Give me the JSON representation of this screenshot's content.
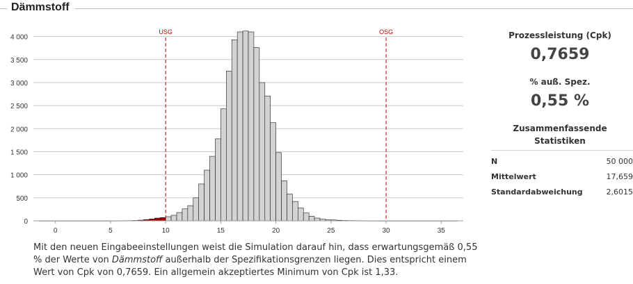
{
  "title": "Dämmstoff",
  "stats": {
    "cpk_label": "Prozessleistung (Cpk)",
    "cpk_value": "0,7659",
    "outside_label": "% auß. Spez.",
    "outside_value": "0,55 %",
    "summary_title_line1": "Zusammenfassende",
    "summary_title_line2": "Statistiken",
    "rows": [
      {
        "label": "N",
        "value": "50 000"
      },
      {
        "label": "Mittelwert",
        "value": "17,659"
      },
      {
        "label": "Standardabweichung",
        "value": "2,6015"
      }
    ]
  },
  "description": {
    "part1": "Mit den neuen Eingabeeinstellungen weist die Simulation darauf hin, dass erwartungsgemäß 0,55 % der Werte von ",
    "italic": "Dämmstoff",
    "part2": " außerhalb der Spezifikationsgrenzen liegen. Dies entspricht einem Wert von Cpk von 0,7659. Ein allgemein akzeptiertes Minimum von Cpk ist 1,33."
  },
  "colors": {
    "bar_fill": "#d3d3d3",
    "bar_out_fill": "#a40000",
    "spec_line": "#c00000",
    "grid": "#c8c8c8"
  },
  "chart_data": {
    "type": "bar",
    "bin_width": 0.5,
    "bin_starts": [
      -1.5,
      -1,
      -0.5,
      0,
      0.5,
      1,
      1.5,
      2,
      2.5,
      3,
      3.5,
      4,
      4.5,
      5,
      5.5,
      6,
      6.5,
      7,
      7.5,
      8,
      8.5,
      9,
      9.5,
      10,
      10.5,
      11,
      11.5,
      12,
      12.5,
      13,
      13.5,
      14,
      14.5,
      15,
      15.5,
      16,
      16.5,
      17,
      17.5,
      18,
      18.5,
      19,
      19.5,
      20,
      20.5,
      21,
      21.5,
      22,
      22.5,
      23,
      23.5,
      24,
      24.5,
      25,
      25.5,
      26,
      26.5,
      27,
      27.5,
      28,
      28.5,
      29,
      29.5,
      30,
      30.5,
      31,
      31.5,
      32,
      32.5,
      33,
      33.5,
      34,
      34.5,
      35,
      35.5,
      36
    ],
    "values": [
      2,
      2,
      2,
      2,
      2,
      2,
      2,
      2,
      2,
      2,
      2,
      2,
      2,
      3,
      3,
      4,
      5,
      8,
      15,
      25,
      40,
      60,
      70,
      90,
      120,
      180,
      260,
      330,
      500,
      800,
      1100,
      1400,
      1780,
      2430,
      3250,
      3930,
      4100,
      4120,
      4100,
      3760,
      3000,
      2710,
      2130,
      1480,
      870,
      580,
      420,
      280,
      170,
      100,
      60,
      35,
      25,
      18,
      12,
      8,
      6,
      5,
      4,
      3,
      3,
      3,
      2,
      2,
      2,
      2,
      2,
      2,
      2,
      2,
      2,
      2,
      2,
      2,
      2,
      2
    ],
    "x_ticks": [
      0,
      5,
      10,
      15,
      20,
      25,
      30,
      35
    ],
    "y_ticks": [
      0,
      500,
      1000,
      1500,
      2000,
      2500,
      3000,
      3500,
      4000
    ],
    "y_tick_labels": [
      "0",
      "500",
      "1 000",
      "1 500",
      "2 000",
      "2 500",
      "3 000",
      "3 500",
      "4 000"
    ],
    "xlim": [
      -2,
      37
    ],
    "ylim": [
      0,
      4250
    ],
    "spec_limits": [
      {
        "label": "USG",
        "value": 10
      },
      {
        "label": "OSG",
        "value": 30
      }
    ],
    "grid": true
  }
}
